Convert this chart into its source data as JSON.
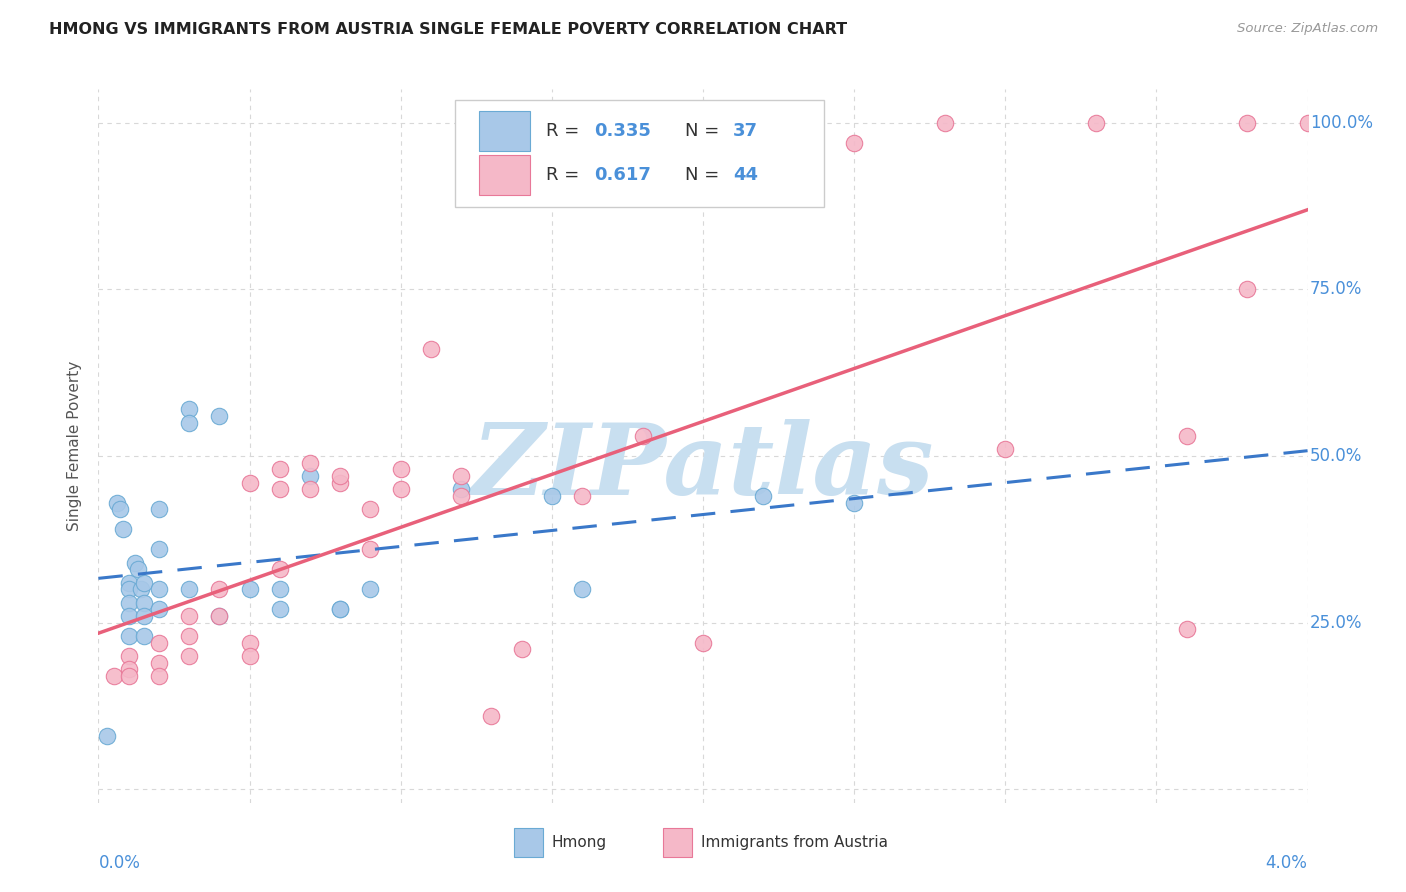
{
  "title": "HMONG VS IMMIGRANTS FROM AUSTRIA SINGLE FEMALE POVERTY CORRELATION CHART",
  "source": "Source: ZipAtlas.com",
  "ylabel": "Single Female Poverty",
  "xlim": [
    0.0,
    0.04
  ],
  "ylim": [
    -0.02,
    1.05
  ],
  "ytick_positions": [
    0.0,
    0.25,
    0.5,
    0.75,
    1.0
  ],
  "ytick_labels": [
    "",
    "25.0%",
    "50.0%",
    "75.0%",
    "100.0%"
  ],
  "color_hmong_fill": "#a8c8e8",
  "color_hmong_edge": "#6aaad4",
  "color_austria_fill": "#f5b8c8",
  "color_austria_edge": "#e87898",
  "color_hmong_line": "#3a78c9",
  "color_austria_line": "#e8607a",
  "color_tick_labels": "#4a90d9",
  "color_grid": "#d8d8d8",
  "color_watermark": "#c8dff0",
  "watermark": "ZIPatlas",
  "legend_r1": "0.335",
  "legend_n1": "37",
  "legend_r2": "0.617",
  "legend_n2": "44",
  "hmong_x": [
    0.0003,
    0.0006,
    0.0007,
    0.0008,
    0.001,
    0.001,
    0.001,
    0.001,
    0.001,
    0.0012,
    0.0013,
    0.0014,
    0.0015,
    0.0015,
    0.0015,
    0.0015,
    0.002,
    0.002,
    0.002,
    0.002,
    0.003,
    0.003,
    0.003,
    0.004,
    0.004,
    0.005,
    0.006,
    0.006,
    0.007,
    0.008,
    0.008,
    0.009,
    0.012,
    0.015,
    0.016,
    0.022,
    0.025
  ],
  "hmong_y": [
    0.08,
    0.43,
    0.42,
    0.39,
    0.31,
    0.3,
    0.28,
    0.26,
    0.23,
    0.34,
    0.33,
    0.3,
    0.31,
    0.28,
    0.26,
    0.23,
    0.42,
    0.36,
    0.3,
    0.27,
    0.57,
    0.55,
    0.3,
    0.56,
    0.26,
    0.3,
    0.27,
    0.3,
    0.47,
    0.27,
    0.27,
    0.3,
    0.45,
    0.44,
    0.3,
    0.44,
    0.43
  ],
  "austria_x": [
    0.0005,
    0.001,
    0.001,
    0.001,
    0.002,
    0.002,
    0.002,
    0.003,
    0.003,
    0.003,
    0.004,
    0.004,
    0.005,
    0.005,
    0.005,
    0.006,
    0.006,
    0.006,
    0.007,
    0.007,
    0.008,
    0.008,
    0.009,
    0.009,
    0.01,
    0.01,
    0.011,
    0.012,
    0.012,
    0.013,
    0.014,
    0.016,
    0.018,
    0.02,
    0.022,
    0.025,
    0.028,
    0.03,
    0.033,
    0.036,
    0.036,
    0.038,
    0.038,
    0.04
  ],
  "austria_y": [
    0.17,
    0.2,
    0.18,
    0.17,
    0.22,
    0.19,
    0.17,
    0.26,
    0.23,
    0.2,
    0.3,
    0.26,
    0.46,
    0.22,
    0.2,
    0.48,
    0.45,
    0.33,
    0.49,
    0.45,
    0.46,
    0.47,
    0.42,
    0.36,
    0.48,
    0.45,
    0.66,
    0.47,
    0.44,
    0.11,
    0.21,
    0.44,
    0.53,
    0.22,
    1.0,
    0.97,
    1.0,
    0.51,
    1.0,
    0.53,
    0.24,
    1.0,
    0.75,
    1.0
  ],
  "background": "#ffffff"
}
